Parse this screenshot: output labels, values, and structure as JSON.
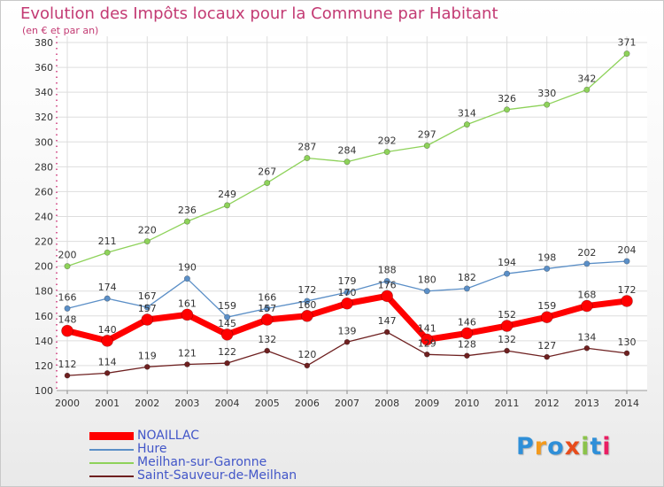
{
  "chart_data": {
    "type": "line",
    "title": "Evolution des Impôts locaux pour la Commune par Habitant",
    "subtitle": "(en € et par an)",
    "x": [
      "2000",
      "2001",
      "2002",
      "2003",
      "2004",
      "2005",
      "2006",
      "2007",
      "2008",
      "2009",
      "2010",
      "2011",
      "2012",
      "2013",
      "2014"
    ],
    "ylim": [
      100,
      380
    ],
    "yticks": [
      100,
      120,
      140,
      160,
      180,
      200,
      220,
      240,
      260,
      280,
      300,
      320,
      340,
      360,
      380
    ],
    "grid": true,
    "legend_position": "bottom-left",
    "series": [
      {
        "name": "NOAILLAC",
        "color": "#ff0000",
        "values": [
          148,
          140,
          157,
          161,
          145,
          157,
          160,
          170,
          176,
          141,
          146,
          152,
          159,
          168,
          172
        ]
      },
      {
        "name": "Hure",
        "color": "#5b8fc7",
        "values": [
          166,
          174,
          167,
          190,
          159,
          166,
          172,
          179,
          188,
          180,
          182,
          194,
          198,
          202,
          204
        ]
      },
      {
        "name": "Meilhan-sur-Garonne",
        "color": "#8ed25a",
        "values": [
          200,
          211,
          220,
          236,
          249,
          267,
          287,
          284,
          292,
          297,
          314,
          326,
          330,
          342,
          371
        ]
      },
      {
        "name": "Saint-Sauveur-de-Meilhan",
        "color": "#6e2020",
        "values": [
          112,
          114,
          119,
          121,
          122,
          132,
          120,
          139,
          147,
          129,
          128,
          132,
          127,
          134,
          130
        ]
      }
    ]
  },
  "logo": {
    "text": "Proxiti",
    "colors": [
      "#2f8fd8",
      "#f39a1e",
      "#2f8fd8",
      "#e74c1c",
      "#8bc34a",
      "#2f8fd8",
      "#e91e63"
    ]
  }
}
